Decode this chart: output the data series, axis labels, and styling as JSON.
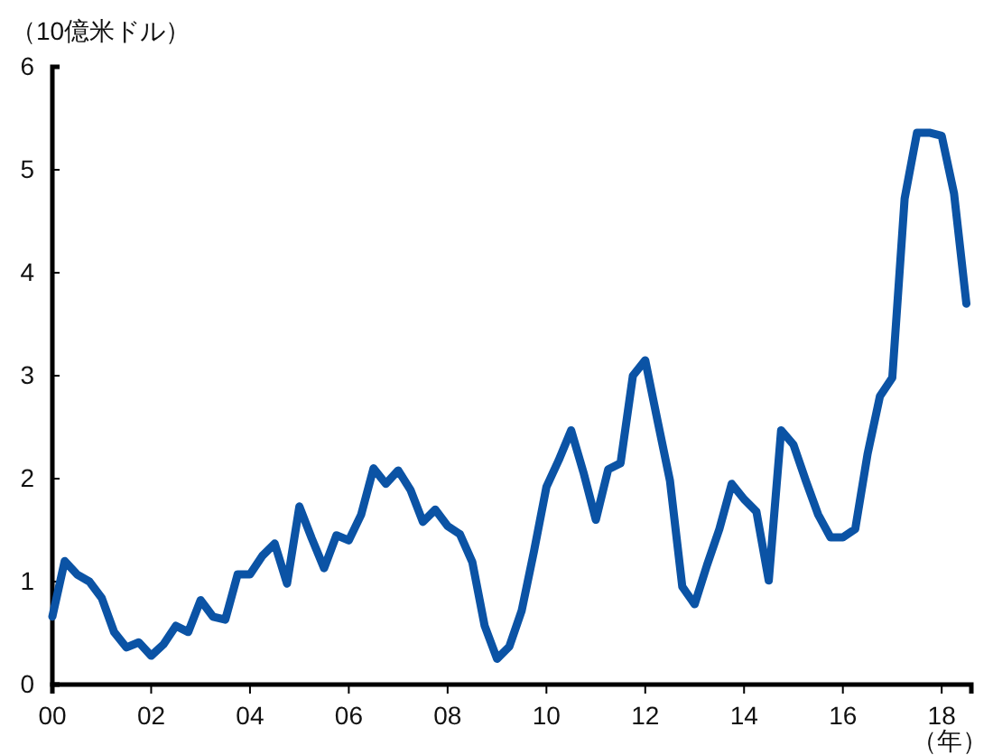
{
  "chart_data": {
    "type": "line",
    "ylabel": "（10億米ドル）",
    "xlabel": "（年）",
    "x": [
      2000,
      2000.25,
      2000.5,
      2000.75,
      2001,
      2001.25,
      2001.5,
      2001.75,
      2002,
      2002.25,
      2002.5,
      2002.75,
      2003,
      2003.25,
      2003.5,
      2003.75,
      2004,
      2004.25,
      2004.5,
      2004.75,
      2005,
      2005.25,
      2005.5,
      2005.75,
      2006,
      2006.25,
      2006.5,
      2006.75,
      2007,
      2007.25,
      2007.5,
      2007.75,
      2008,
      2008.25,
      2008.5,
      2008.75,
      2009,
      2009.25,
      2009.5,
      2009.75,
      2010,
      2010.25,
      2010.5,
      2010.75,
      2011,
      2011.25,
      2011.5,
      2011.75,
      2012,
      2012.25,
      2012.5,
      2012.75,
      2013,
      2013.25,
      2013.5,
      2013.75,
      2014,
      2014.25,
      2014.5,
      2014.75,
      2015,
      2015.25,
      2015.5,
      2015.75,
      2016,
      2016.25,
      2016.5,
      2016.75,
      2017,
      2017.25,
      2017.5,
      2017.75,
      2018,
      2018.25,
      2018.5
    ],
    "series": [
      {
        "color": "#0b53a5",
        "values": [
          0.66,
          1.2,
          1.07,
          1.0,
          0.84,
          0.51,
          0.36,
          0.41,
          0.28,
          0.39,
          0.57,
          0.51,
          0.82,
          0.66,
          0.63,
          1.07,
          1.07,
          1.25,
          1.37,
          0.98,
          1.73,
          1.42,
          1.13,
          1.45,
          1.4,
          1.65,
          2.1,
          1.95,
          2.08,
          1.89,
          1.58,
          1.7,
          1.54,
          1.46,
          1.19,
          0.57,
          0.25,
          0.37,
          0.72,
          1.3,
          1.92,
          2.18,
          2.47,
          2.06,
          1.6,
          2.09,
          2.15,
          3.0,
          3.15,
          2.56,
          1.98,
          0.95,
          0.78,
          1.16,
          1.51,
          1.95,
          1.8,
          1.68,
          1.01,
          2.47,
          2.33,
          1.98,
          1.65,
          1.43,
          1.43,
          1.51,
          2.24,
          2.8,
          2.98,
          4.72,
          5.36,
          5.36,
          5.33,
          4.77,
          3.7
        ]
      }
    ],
    "xlim": [
      2000,
      2018.6
    ],
    "xticks": [
      {
        "value": 2000,
        "label": "00"
      },
      {
        "value": 2002,
        "label": "02"
      },
      {
        "value": 2004,
        "label": "04"
      },
      {
        "value": 2006,
        "label": "06"
      },
      {
        "value": 2008,
        "label": "08"
      },
      {
        "value": 2010,
        "label": "10"
      },
      {
        "value": 2012,
        "label": "12"
      },
      {
        "value": 2014,
        "label": "14"
      },
      {
        "value": 2016,
        "label": "16"
      },
      {
        "value": 2018,
        "label": "18"
      }
    ],
    "ylim": [
      0,
      6
    ],
    "yticks": [
      0,
      1,
      2,
      3,
      4,
      5,
      6
    ],
    "grid": false,
    "marker": "none",
    "line_style": "solid"
  }
}
